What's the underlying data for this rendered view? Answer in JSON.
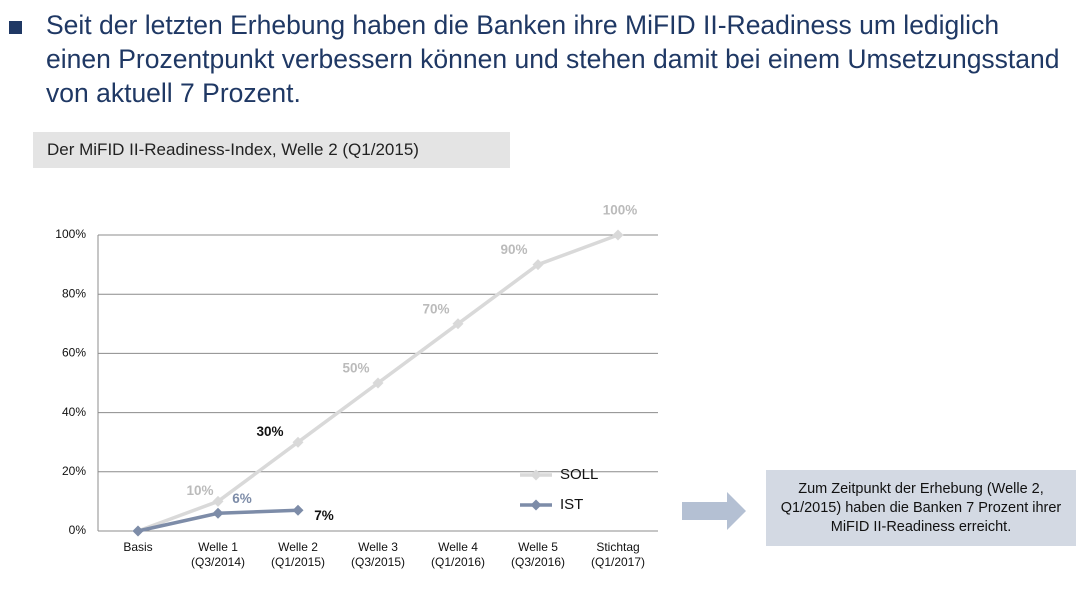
{
  "header": {
    "title": "Seit der letzten Erhebung haben die Banken ihre MiFID II-Readiness um lediglich einen Prozentpunkt verbessern können und stehen damit bei einem Umsetzungsstand von aktuell 7 Prozent.",
    "subtitle": "Der MiFID II-Readiness-Index, Welle 2 (Q1/2015)"
  },
  "callout": "Zum Zeitpunkt der Erhebung (Welle 2, Q1/2015) haben die Banken 7 Prozent ihrer MiFID II-Readiness erreicht.",
  "chart_data": {
    "type": "line",
    "categories": [
      "Basis",
      "Welle 1\n(Q3/2014)",
      "Welle 2\n(Q1/2015)",
      "Welle 3\n(Q3/2015)",
      "Welle 4\n(Q1/2016)",
      "Welle 5\n(Q3/2016)",
      "Stichtag\n(Q1/2017)"
    ],
    "series": [
      {
        "name": "SOLL",
        "color": "#d9d9d9",
        "values": [
          0,
          10,
          30,
          50,
          70,
          90,
          100
        ],
        "value_labels": [
          null,
          "10%",
          "30%",
          "50%",
          "70%",
          "90%",
          "100%"
        ]
      },
      {
        "name": "IST",
        "color": "#7d8ca8",
        "values": [
          0,
          6,
          7,
          null,
          null,
          null,
          null
        ],
        "value_labels": [
          null,
          "6%",
          "7%",
          null,
          null,
          null,
          null
        ]
      }
    ],
    "ylim": [
      0,
      100
    ],
    "yticks": [
      {
        "value": 0,
        "label": "0%"
      },
      {
        "value": 20,
        "label": "20%"
      },
      {
        "value": 40,
        "label": "40%"
      },
      {
        "value": 60,
        "label": "60%"
      },
      {
        "value": 80,
        "label": "80%"
      },
      {
        "value": 100,
        "label": "100%"
      }
    ],
    "grid": true,
    "legend": "lower right"
  }
}
